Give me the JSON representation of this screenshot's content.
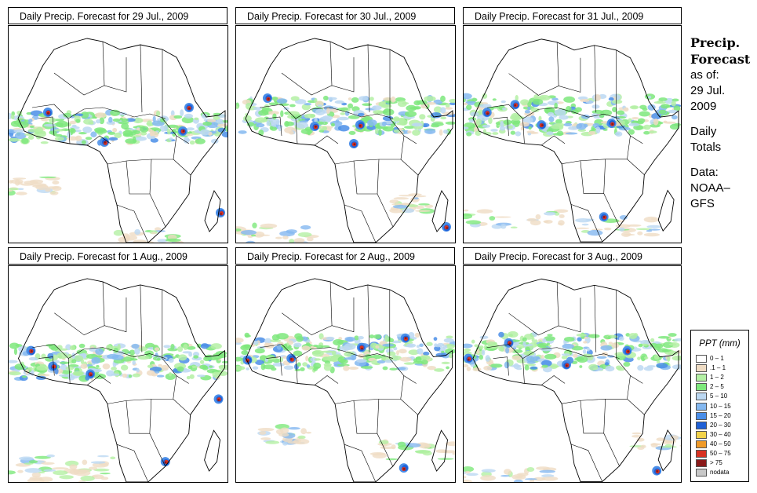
{
  "panels": [
    {
      "title": "Daily Precip. Forecast for  29 Jul., 2009",
      "variant": 0
    },
    {
      "title": "Daily Precip. Forecast for  30 Jul., 2009",
      "variant": 1
    },
    {
      "title": "Daily Precip. Forecast for  31 Jul., 2009",
      "variant": 2
    },
    {
      "title": "Daily Precip. Forecast for  1 Aug., 2009",
      "variant": 3
    },
    {
      "title": "Daily Precip. Forecast for  2 Aug., 2009",
      "variant": 4
    },
    {
      "title": "Daily Precip. Forecast for  3 Aug., 2009",
      "variant": 5
    }
  ],
  "sidebar": {
    "heading_line1": "Precip.",
    "heading_line2": "Forecast",
    "asof_line1": "as of:",
    "asof_line2": "29 Jul.",
    "asof_line3": "2009",
    "totals_line1": "Daily",
    "totals_line2": "Totals",
    "data_line1": "Data:",
    "data_line2": "NOAA–",
    "data_line3": "GFS"
  },
  "legend": {
    "title": "PPT (mm)",
    "items": [
      {
        "label": "0 – 1",
        "color": "#ffffff"
      },
      {
        "label": ".1 – 1",
        "color": "#efdcc4"
      },
      {
        "label": "1 – 2",
        "color": "#b4f0a4"
      },
      {
        "label": "2 – 5",
        "color": "#7ee87c"
      },
      {
        "label": "5 – 10",
        "color": "#bcd8f2"
      },
      {
        "label": "10 – 15",
        "color": "#84b8f0"
      },
      {
        "label": "15 – 20",
        "color": "#4a8ee8"
      },
      {
        "label": "20 – 30",
        "color": "#1f60d6"
      },
      {
        "label": "30 – 40",
        "color": "#f2d24a"
      },
      {
        "label": "40 – 50",
        "color": "#f09a28"
      },
      {
        "label": "50 – 75",
        "color": "#d83222"
      },
      {
        "label": "> 75",
        "color": "#8a1a1a"
      },
      {
        "label": "nodata",
        "color": "#c8c8c8"
      }
    ]
  },
  "colors": {
    "border": "#000000",
    "coastline": "#000000",
    "background": "#ffffff"
  }
}
